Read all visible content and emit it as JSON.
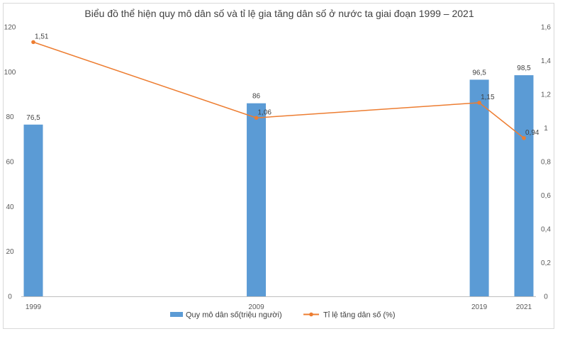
{
  "chart_data": {
    "type": "bar+line",
    "title": "Biểu đồ thể hiện quy mô dân số và tỉ lệ gia tăng dân số ở nước ta giai đoạn 1999 – 2021",
    "x": [
      1999,
      2009,
      2019,
      2021
    ],
    "x_tick_labels": [
      "1999",
      "2009",
      "2019",
      "2021"
    ],
    "series": [
      {
        "name": "Quy mô dân số(triệu người)",
        "type": "bar",
        "axis": "left",
        "color": "#5B9BD5",
        "values": [
          76.5,
          86,
          96.5,
          98.5
        ],
        "labels": [
          "76,5",
          "86",
          "96,5",
          "98,5"
        ]
      },
      {
        "name": "Tỉ lệ tăng dân số (%)",
        "type": "line",
        "axis": "right",
        "color": "#ED7D31",
        "values": [
          1.51,
          1.06,
          1.15,
          0.94
        ],
        "labels": [
          "1,51",
          "1,06",
          "1,15",
          "0,94"
        ]
      }
    ],
    "y_left": {
      "range": [
        0,
        120
      ],
      "ticks": [
        0,
        20,
        40,
        60,
        80,
        100,
        120
      ],
      "tick_labels": [
        "0",
        "20",
        "40",
        "60",
        "80",
        "100",
        "120"
      ]
    },
    "y_right": {
      "range": [
        0,
        1.6
      ],
      "ticks": [
        0,
        0.2,
        0.4,
        0.6,
        0.8,
        1,
        1.2,
        1.4,
        1.6
      ],
      "tick_labels": [
        "0",
        "0,2",
        "0,4",
        "0,6",
        "0,8",
        "1",
        "1,2",
        "1,4",
        "1,6"
      ]
    },
    "grid": false,
    "legend": "bottom"
  }
}
